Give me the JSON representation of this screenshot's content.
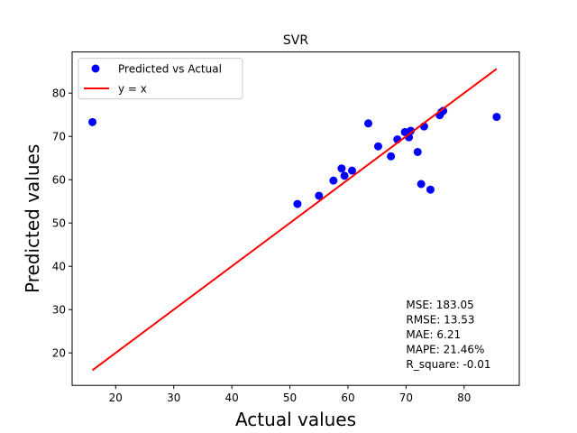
{
  "chart_data": {
    "type": "scatter",
    "title": "SVR",
    "xlabel": "Actual values",
    "ylabel": "Predicted values",
    "xlim": [
      12.5,
      89.5
    ],
    "ylim": [
      12.5,
      89.5
    ],
    "xticks": [
      20,
      30,
      40,
      50,
      60,
      70,
      80
    ],
    "yticks": [
      20,
      30,
      40,
      50,
      60,
      70,
      80
    ],
    "grid": false,
    "legend_position": "top-left",
    "series": [
      {
        "name": "Predicted vs Actual",
        "kind": "scatter",
        "color": "#0000ff",
        "points": [
          [
            16.0,
            73.3
          ],
          [
            51.3,
            54.4
          ],
          [
            55.0,
            56.3
          ],
          [
            57.5,
            59.8
          ],
          [
            58.9,
            62.6
          ],
          [
            59.4,
            60.9
          ],
          [
            60.7,
            62.1
          ],
          [
            63.5,
            73.0
          ],
          [
            65.2,
            67.7
          ],
          [
            67.4,
            65.4
          ],
          [
            68.5,
            69.3
          ],
          [
            69.8,
            71.0
          ],
          [
            70.5,
            69.8
          ],
          [
            70.8,
            71.3
          ],
          [
            72.0,
            66.4
          ],
          [
            72.6,
            59.0
          ],
          [
            73.1,
            72.3
          ],
          [
            74.2,
            57.7
          ],
          [
            75.8,
            74.9
          ],
          [
            76.1,
            75.6
          ],
          [
            76.4,
            75.9
          ],
          [
            85.6,
            74.5
          ]
        ]
      },
      {
        "name": "y = x",
        "kind": "line",
        "color": "#ff0000",
        "points": [
          [
            16.0,
            16.0
          ],
          [
            85.6,
            85.6
          ]
        ]
      }
    ],
    "annotation": [
      "MSE: 183.05",
      "RMSE: 13.53",
      "MAE: 6.21",
      "MAPE: 21.46%",
      "R_square: -0.01"
    ],
    "annotation_anchor": [
      70.0,
      16.5
    ]
  }
}
